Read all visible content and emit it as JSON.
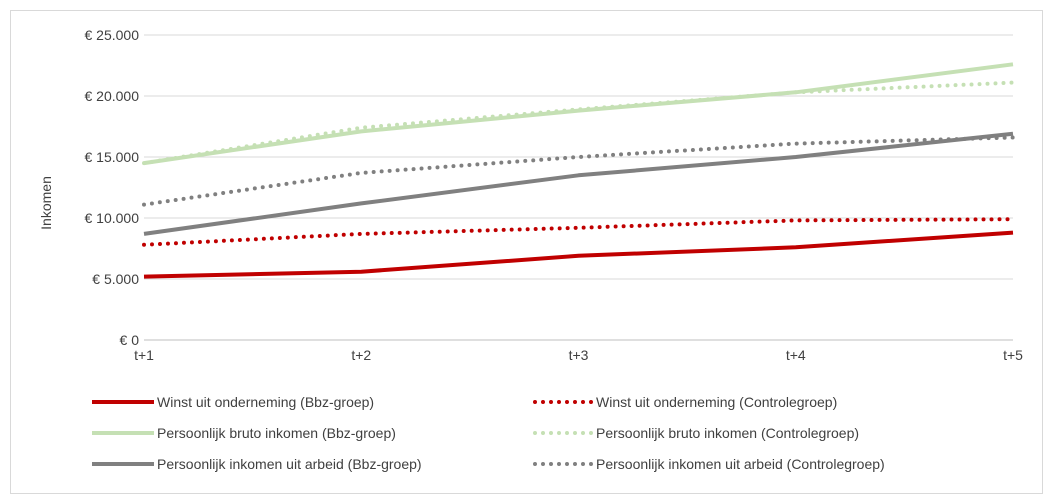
{
  "chart_data": {
    "type": "line",
    "title": "",
    "xlabel": "",
    "ylabel": "Inkomen",
    "categories": [
      "t+1",
      "t+2",
      "t+3",
      "t+4",
      "t+5"
    ],
    "y_ticks": [
      "€ 0",
      "€ 5.000",
      "€ 10.000",
      "€ 15.000",
      "€ 20.000",
      "€ 25.000"
    ],
    "y_tick_values": [
      0,
      5000,
      10000,
      15000,
      20000,
      25000
    ],
    "ylim": [
      0,
      25000
    ],
    "grid": true,
    "legend_position": "bottom",
    "series": [
      {
        "name": "Winst uit onderneming (Bbz-groep)",
        "values": [
          5200,
          5600,
          6900,
          7600,
          8800
        ],
        "color": "#c00000",
        "style": "solid"
      },
      {
        "name": "Winst uit onderneming (Controlegroep)",
        "values": [
          7800,
          8700,
          9200,
          9800,
          9900
        ],
        "color": "#c00000",
        "style": "dotted"
      },
      {
        "name": "Persoonlijk bruto inkomen (Bbz-groep)",
        "values": [
          14500,
          17100,
          18800,
          20300,
          22600
        ],
        "color": "#c5e0b4",
        "style": "solid"
      },
      {
        "name": "Persoonlijk bruto inkomen (Controlegroep)",
        "values": [
          14500,
          17400,
          18900,
          20300,
          21100
        ],
        "color": "#c5e0b4",
        "style": "dotted"
      },
      {
        "name": "Persoonlijk inkomen uit arbeid (Bbz-groep)",
        "values": [
          8700,
          11200,
          13500,
          15000,
          16900
        ],
        "color": "#808080",
        "style": "solid"
      },
      {
        "name": "Persoonlijk inkomen uit arbeid (Controlegroep)",
        "values": [
          11100,
          13700,
          15000,
          16100,
          16600
        ],
        "color": "#808080",
        "style": "dotted"
      }
    ]
  }
}
